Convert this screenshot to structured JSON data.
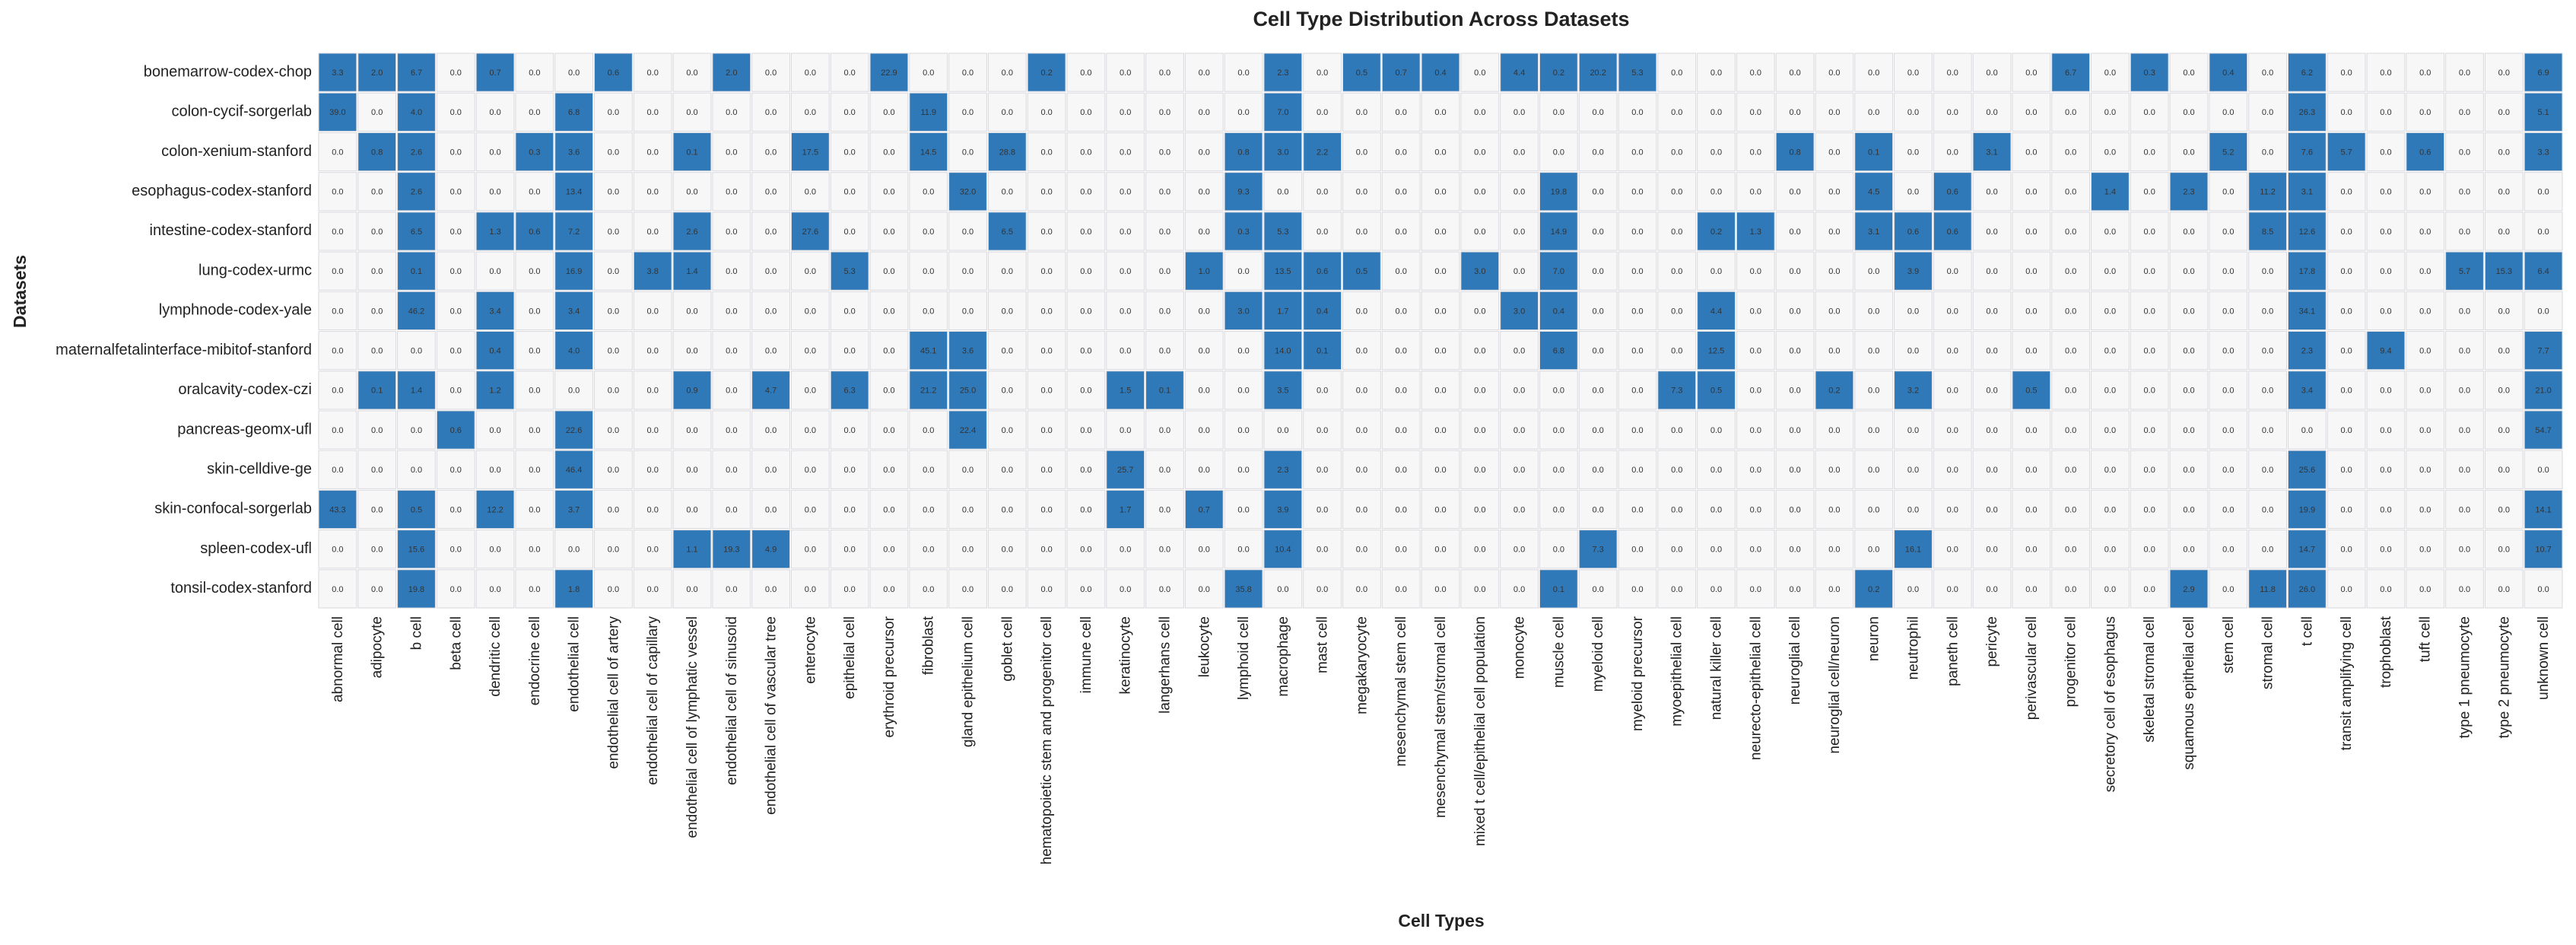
{
  "chart_data": {
    "type": "heatmap",
    "title": "Cell Type Distribution Across Datasets",
    "xlabel": "Cell Types",
    "ylabel": "Datasets",
    "colors": {
      "high": "#2f79b9",
      "low": "#f7f7f8",
      "grid": "#d9d9de",
      "text_dark": "#333333",
      "text_light": "#ffffff"
    },
    "rows": [
      "bonemarrow-codex-chop",
      "colon-cycif-sorgerlab",
      "colon-xenium-stanford",
      "esophagus-codex-stanford",
      "intestine-codex-stanford",
      "lung-codex-urmc",
      "lymphnode-codex-yale",
      "maternalfetalinterface-mibitof-stanford",
      "oralcavity-codex-czi",
      "pancreas-geomx-ufl",
      "skin-celldive-ge",
      "skin-confocal-sorgerlab",
      "spleen-codex-ufl",
      "tonsil-codex-stanford"
    ],
    "columns": [
      "abnormal cell",
      "adipocyte",
      "b cell",
      "beta cell",
      "dendritic cell",
      "endocrine cell",
      "endothelial cell",
      "endothelial cell of artery",
      "endothelial cell of capillary",
      "endothelial cell of lymphatic vessel",
      "endothelial cell of sinusoid",
      "endothelial cell of vascular tree",
      "enterocyte",
      "epithelial cell",
      "erythroid precursor",
      "fibroblast",
      "gland epithelium cell",
      "goblet cell",
      "hematopoietic stem and progenitor cell",
      "immune cell",
      "keratinocyte",
      "langerhans cell",
      "leukocyte",
      "lymphoid cell",
      "macrophage",
      "mast cell",
      "megakaryocyte",
      "mesenchymal stem cell",
      "mesenchymal stem/stromal cell",
      "mixed t cell/epithelial cell population",
      "monocyte",
      "muscle cell",
      "myeloid cell",
      "myeloid precursor",
      "myoepithelial cell",
      "natural killer cell",
      "neurecto-epithelial cell",
      "neuroglial cell",
      "neuroglial cell/neuron",
      "neuron",
      "neutrophil",
      "paneth cell",
      "pericyte",
      "perivascular cell",
      "progenitor cell",
      "secretory cell of esophagus",
      "skeletal stromal cell",
      "squamous epithelial cell",
      "stem cell",
      "stromal cell",
      "t cell",
      "transit amplifying cell",
      "trophoblast",
      "tuft cell",
      "type 1 pneumocyte",
      "type 2 pneumocyte",
      "unknown cell"
    ],
    "values": [
      [
        3.3,
        2.0,
        6.7,
        0.0,
        0.7,
        0.0,
        0.0,
        0.6,
        0.0,
        0.0,
        2.0,
        0.0,
        0.0,
        0.0,
        22.9,
        0.0,
        0.0,
        0.0,
        0.2,
        0.0,
        0.0,
        0.0,
        0.0,
        0.0,
        2.3,
        0.0,
        0.5,
        0.7,
        0.4,
        0.0,
        4.4,
        0.2,
        20.2,
        5.3,
        0.0,
        0.0,
        0.0,
        0.0,
        0.0,
        0.0,
        0.0,
        0.0,
        0.0,
        0.0,
        6.7,
        0.0,
        0.3,
        0.0,
        0.4,
        0.0,
        6.2,
        0.0,
        0.0,
        0.0,
        0.0,
        0.0,
        6.9
      ],
      [
        39.0,
        0.0,
        4.0,
        0.0,
        0.0,
        0.0,
        6.8,
        0.0,
        0.0,
        0.0,
        0.0,
        0.0,
        0.0,
        0.0,
        0.0,
        11.9,
        0.0,
        0.0,
        0.0,
        0.0,
        0.0,
        0.0,
        0.0,
        0.0,
        7.0,
        0.0,
        0.0,
        0.0,
        0.0,
        0.0,
        0.0,
        0.0,
        0.0,
        0.0,
        0.0,
        0.0,
        0.0,
        0.0,
        0.0,
        0.0,
        0.0,
        0.0,
        0.0,
        0.0,
        0.0,
        0.0,
        0.0,
        0.0,
        0.0,
        0.0,
        26.3,
        0.0,
        0.0,
        0.0,
        0.0,
        0.0,
        5.1
      ],
      [
        0.0,
        0.8,
        2.6,
        0.0,
        0.0,
        0.3,
        3.6,
        0.0,
        0.0,
        0.1,
        0.0,
        0.0,
        17.5,
        0.0,
        0.0,
        14.5,
        0.0,
        28.8,
        0.0,
        0.0,
        0.0,
        0.0,
        0.0,
        0.8,
        3.0,
        2.2,
        0.0,
        0.0,
        0.0,
        0.0,
        0.0,
        0.0,
        0.0,
        0.0,
        0.0,
        0.0,
        0.0,
        0.8,
        0.0,
        0.1,
        0.0,
        0.0,
        3.1,
        0.0,
        0.0,
        0.0,
        0.0,
        0.0,
        5.2,
        0.0,
        7.6,
        5.7,
        0.0,
        0.6,
        0.0,
        0.0,
        3.3
      ],
      [
        0.0,
        0.0,
        2.6,
        0.0,
        0.0,
        0.0,
        13.4,
        0.0,
        0.0,
        0.0,
        0.0,
        0.0,
        0.0,
        0.0,
        0.0,
        0.0,
        32.0,
        0.0,
        0.0,
        0.0,
        0.0,
        0.0,
        0.0,
        9.3,
        0.0,
        0.0,
        0.0,
        0.0,
        0.0,
        0.0,
        0.0,
        19.8,
        0.0,
        0.0,
        0.0,
        0.0,
        0.0,
        0.0,
        0.0,
        4.5,
        0.0,
        0.6,
        0.0,
        0.0,
        0.0,
        1.4,
        0.0,
        2.3,
        0.0,
        11.2,
        3.1,
        0.0,
        0.0,
        0.0,
        0.0,
        0.0,
        0.0
      ],
      [
        0.0,
        0.0,
        6.5,
        0.0,
        1.3,
        0.6,
        7.2,
        0.0,
        0.0,
        2.6,
        0.0,
        0.0,
        27.6,
        0.0,
        0.0,
        0.0,
        0.0,
        6.5,
        0.0,
        0.0,
        0.0,
        0.0,
        0.0,
        0.3,
        5.3,
        0.0,
        0.0,
        0.0,
        0.0,
        0.0,
        0.0,
        14.9,
        0.0,
        0.0,
        0.0,
        0.2,
        1.3,
        0.0,
        0.0,
        3.1,
        0.6,
        0.6,
        0.0,
        0.0,
        0.0,
        0.0,
        0.0,
        0.0,
        0.0,
        8.5,
        12.6,
        0.0,
        0.0,
        0.0,
        0.0,
        0.0,
        0.0
      ],
      [
        0.0,
        0.0,
        0.1,
        0.0,
        0.0,
        0.0,
        16.9,
        0.0,
        3.8,
        1.4,
        0.0,
        0.0,
        0.0,
        5.3,
        0.0,
        0.0,
        0.0,
        0.0,
        0.0,
        0.0,
        0.0,
        0.0,
        1.0,
        0.0,
        13.5,
        0.6,
        0.5,
        0.0,
        0.0,
        3.0,
        0.0,
        7.0,
        0.0,
        0.0,
        0.0,
        0.0,
        0.0,
        0.0,
        0.0,
        0.0,
        3.9,
        0.0,
        0.0,
        0.0,
        0.0,
        0.0,
        0.0,
        0.0,
        0.0,
        0.0,
        17.8,
        0.0,
        0.0,
        0.0,
        5.7,
        15.3,
        6.4
      ],
      [
        0.0,
        0.0,
        46.2,
        0.0,
        3.4,
        0.0,
        3.4,
        0.0,
        0.0,
        0.0,
        0.0,
        0.0,
        0.0,
        0.0,
        0.0,
        0.0,
        0.0,
        0.0,
        0.0,
        0.0,
        0.0,
        0.0,
        0.0,
        3.0,
        1.7,
        0.4,
        0.0,
        0.0,
        0.0,
        0.0,
        3.0,
        0.4,
        0.0,
        0.0,
        0.0,
        4.4,
        0.0,
        0.0,
        0.0,
        0.0,
        0.0,
        0.0,
        0.0,
        0.0,
        0.0,
        0.0,
        0.0,
        0.0,
        0.0,
        0.0,
        34.1,
        0.0,
        0.0,
        0.0,
        0.0,
        0.0,
        0.0
      ],
      [
        0.0,
        0.0,
        0.0,
        0.0,
        0.4,
        0.0,
        4.0,
        0.0,
        0.0,
        0.0,
        0.0,
        0.0,
        0.0,
        0.0,
        0.0,
        45.1,
        3.6,
        0.0,
        0.0,
        0.0,
        0.0,
        0.0,
        0.0,
        0.0,
        14.0,
        0.1,
        0.0,
        0.0,
        0.0,
        0.0,
        0.0,
        6.8,
        0.0,
        0.0,
        0.0,
        12.5,
        0.0,
        0.0,
        0.0,
        0.0,
        0.0,
        0.0,
        0.0,
        0.0,
        0.0,
        0.0,
        0.0,
        0.0,
        0.0,
        0.0,
        2.3,
        0.0,
        9.4,
        0.0,
        0.0,
        0.0,
        7.7
      ],
      [
        0.0,
        0.1,
        1.4,
        0.0,
        1.2,
        0.0,
        0.0,
        0.0,
        0.0,
        0.9,
        0.0,
        4.7,
        0.0,
        6.3,
        0.0,
        21.2,
        25.0,
        0.0,
        0.0,
        0.0,
        1.5,
        0.1,
        0.0,
        0.0,
        3.5,
        0.0,
        0.0,
        0.0,
        0.0,
        0.0,
        0.0,
        0.0,
        0.0,
        0.0,
        7.3,
        0.5,
        0.0,
        0.0,
        0.2,
        0.0,
        3.2,
        0.0,
        0.0,
        0.5,
        0.0,
        0.0,
        0.0,
        0.0,
        0.0,
        0.0,
        3.4,
        0.0,
        0.0,
        0.0,
        0.0,
        0.0,
        21.0
      ],
      [
        0.0,
        0.0,
        0.0,
        0.6,
        0.0,
        0.0,
        22.6,
        0.0,
        0.0,
        0.0,
        0.0,
        0.0,
        0.0,
        0.0,
        0.0,
        0.0,
        22.4,
        0.0,
        0.0,
        0.0,
        0.0,
        0.0,
        0.0,
        0.0,
        0.0,
        0.0,
        0.0,
        0.0,
        0.0,
        0.0,
        0.0,
        0.0,
        0.0,
        0.0,
        0.0,
        0.0,
        0.0,
        0.0,
        0.0,
        0.0,
        0.0,
        0.0,
        0.0,
        0.0,
        0.0,
        0.0,
        0.0,
        0.0,
        0.0,
        0.0,
        0.0,
        0.0,
        0.0,
        0.0,
        0.0,
        0.0,
        54.7
      ],
      [
        0.0,
        0.0,
        0.0,
        0.0,
        0.0,
        0.0,
        46.4,
        0.0,
        0.0,
        0.0,
        0.0,
        0.0,
        0.0,
        0.0,
        0.0,
        0.0,
        0.0,
        0.0,
        0.0,
        0.0,
        25.7,
        0.0,
        0.0,
        0.0,
        2.3,
        0.0,
        0.0,
        0.0,
        0.0,
        0.0,
        0.0,
        0.0,
        0.0,
        0.0,
        0.0,
        0.0,
        0.0,
        0.0,
        0.0,
        0.0,
        0.0,
        0.0,
        0.0,
        0.0,
        0.0,
        0.0,
        0.0,
        0.0,
        0.0,
        0.0,
        25.6,
        0.0,
        0.0,
        0.0,
        0.0,
        0.0,
        0.0
      ],
      [
        43.3,
        0.0,
        0.5,
        0.0,
        12.2,
        0.0,
        3.7,
        0.0,
        0.0,
        0.0,
        0.0,
        0.0,
        0.0,
        0.0,
        0.0,
        0.0,
        0.0,
        0.0,
        0.0,
        0.0,
        1.7,
        0.0,
        0.7,
        0.0,
        3.9,
        0.0,
        0.0,
        0.0,
        0.0,
        0.0,
        0.0,
        0.0,
        0.0,
        0.0,
        0.0,
        0.0,
        0.0,
        0.0,
        0.0,
        0.0,
        0.0,
        0.0,
        0.0,
        0.0,
        0.0,
        0.0,
        0.0,
        0.0,
        0.0,
        0.0,
        19.9,
        0.0,
        0.0,
        0.0,
        0.0,
        0.0,
        14.1
      ],
      [
        0.0,
        0.0,
        15.6,
        0.0,
        0.0,
        0.0,
        0.0,
        0.0,
        0.0,
        1.1,
        19.3,
        4.9,
        0.0,
        0.0,
        0.0,
        0.0,
        0.0,
        0.0,
        0.0,
        0.0,
        0.0,
        0.0,
        0.0,
        0.0,
        10.4,
        0.0,
        0.0,
        0.0,
        0.0,
        0.0,
        0.0,
        0.0,
        7.3,
        0.0,
        0.0,
        0.0,
        0.0,
        0.0,
        0.0,
        0.0,
        16.1,
        0.0,
        0.0,
        0.0,
        0.0,
        0.0,
        0.0,
        0.0,
        0.0,
        0.0,
        14.7,
        0.0,
        0.0,
        0.0,
        0.0,
        0.0,
        10.7
      ],
      [
        0.0,
        0.0,
        19.8,
        0.0,
        0.0,
        0.0,
        1.8,
        0.0,
        0.0,
        0.0,
        0.0,
        0.0,
        0.0,
        0.0,
        0.0,
        0.0,
        0.0,
        0.0,
        0.0,
        0.0,
        0.0,
        0.0,
        0.0,
        35.8,
        0.0,
        0.0,
        0.0,
        0.0,
        0.0,
        0.0,
        0.0,
        0.1,
        0.0,
        0.0,
        0.0,
        0.0,
        0.0,
        0.0,
        0.0,
        0.2,
        0.0,
        0.0,
        0.0,
        0.0,
        0.0,
        0.0,
        0.0,
        2.9,
        0.0,
        11.8,
        26.0,
        0.0,
        0.0,
        0.0,
        0.0,
        0.0,
        0.0
      ]
    ]
  }
}
